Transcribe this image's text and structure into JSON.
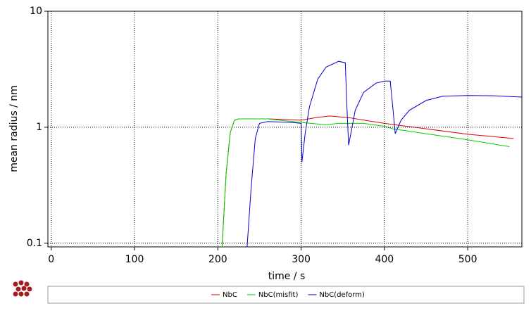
{
  "chart_data": {
    "type": "line",
    "xlabel": "time / s",
    "ylabel": "mean radius / nm",
    "log_y": true,
    "grid": true,
    "xlim": [
      -4,
      565
    ],
    "xticks": [
      0,
      100,
      200,
      300,
      400,
      500
    ],
    "ylim": [
      0.093,
      10
    ],
    "yticks": [
      0.1,
      1,
      10
    ],
    "series": [
      {
        "name": "NbC",
        "color": "#e00000",
        "x": [
          205,
          210,
          215,
          220,
          225,
          260,
          300,
          320,
          335,
          360,
          400,
          450,
          500,
          555
        ],
        "values": [
          0.09,
          0.4,
          0.9,
          1.15,
          1.18,
          1.18,
          1.15,
          1.22,
          1.25,
          1.2,
          1.08,
          0.97,
          0.87,
          0.8
        ]
      },
      {
        "name": "NbC(misfit)",
        "color": "#00d000",
        "x": [
          205,
          210,
          215,
          220,
          225,
          260,
          300,
          330,
          345,
          375,
          400,
          410,
          450,
          500,
          550
        ],
        "values": [
          0.09,
          0.4,
          0.9,
          1.15,
          1.18,
          1.18,
          1.1,
          1.05,
          1.08,
          1.08,
          1.02,
          0.97,
          0.88,
          0.78,
          0.68
        ]
      },
      {
        "name": "NbC(deform)",
        "color": "#0000d0",
        "x": [
          235,
          240,
          245,
          250,
          260,
          290,
          300,
          301,
          305,
          310,
          320,
          330,
          345,
          353,
          355,
          357,
          360,
          365,
          375,
          390,
          400,
          407,
          410,
          413,
          420,
          430,
          450,
          470,
          500,
          530,
          565
        ],
        "values": [
          0.09,
          0.3,
          0.8,
          1.08,
          1.12,
          1.1,
          1.08,
          0.5,
          0.9,
          1.5,
          2.6,
          3.3,
          3.7,
          3.6,
          1.5,
          0.7,
          0.9,
          1.4,
          2.0,
          2.4,
          2.5,
          2.5,
          1.5,
          0.88,
          1.15,
          1.4,
          1.7,
          1.85,
          1.88,
          1.87,
          1.82
        ]
      }
    ]
  }
}
